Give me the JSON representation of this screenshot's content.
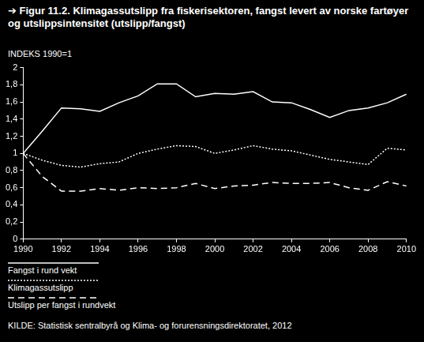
{
  "chart_data": {
    "type": "line",
    "title": "➔ Figur 11.2. Klimagassutslipp fra fiskerisektoren, fangst levert av norske fartøyer og utslippsintensitet (utslipp/fangst)",
    "y_label": "INDEKS 1990=1",
    "source": "KILDE: Statistisk sentralbyrå og Klima- og forurensningsdirektoratet, 2012",
    "x": [
      1990,
      1991,
      1992,
      1993,
      1994,
      1995,
      1996,
      1997,
      1998,
      1999,
      2000,
      2001,
      2002,
      2003,
      2004,
      2005,
      2006,
      2007,
      2008,
      2009,
      2010
    ],
    "series": [
      {
        "name": "Fangst i rund vekt",
        "color": "#ffffff",
        "line_style": "solid",
        "values": [
          1,
          1.26,
          1.53,
          1.52,
          1.49,
          1.59,
          1.67,
          1.81,
          1.81,
          1.66,
          1.7,
          1.69,
          1.72,
          1.6,
          1.59,
          1.51,
          1.42,
          1.5,
          1.53,
          1.59,
          1.69
        ]
      },
      {
        "name": "Klimagassutslipp",
        "color": "#ffffff",
        "line_style": "dotted",
        "values": [
          1,
          0.92,
          0.86,
          0.84,
          0.88,
          0.9,
          1.0,
          1.05,
          1.09,
          1.08,
          1.0,
          1.04,
          1.09,
          1.05,
          1.03,
          0.98,
          0.93,
          0.9,
          0.87,
          1.06,
          1.04
        ]
      },
      {
        "name": "Utslipp per fangst i rundvekt",
        "color": "#ffffff",
        "line_style": "dashed",
        "values": [
          1,
          0.73,
          0.56,
          0.56,
          0.59,
          0.57,
          0.6,
          0.59,
          0.6,
          0.65,
          0.59,
          0.62,
          0.63,
          0.66,
          0.65,
          0.65,
          0.66,
          0.6,
          0.57,
          0.67,
          0.62
        ]
      }
    ],
    "xlim": [
      1990,
      2010
    ],
    "xticks": [
      1990,
      1992,
      1994,
      1996,
      1998,
      2000,
      2002,
      2004,
      2006,
      2008,
      2010
    ],
    "ylim": [
      0,
      2
    ],
    "yticks": [
      0,
      {
        "value": 0.2,
        "label": "0,2"
      },
      {
        "value": 0.4,
        "label": "0,4"
      },
      {
        "value": 0.6,
        "label": "0,6"
      },
      {
        "value": 0.8,
        "label": "0,8"
      },
      1,
      {
        "value": 1.2,
        "label": "1,2"
      },
      {
        "value": 1.4,
        "label": "1,4"
      },
      {
        "value": 1.6,
        "label": "1,6"
      },
      {
        "value": 1.8,
        "label": "1,8"
      },
      2
    ],
    "grid": false,
    "legend": "bottom"
  }
}
